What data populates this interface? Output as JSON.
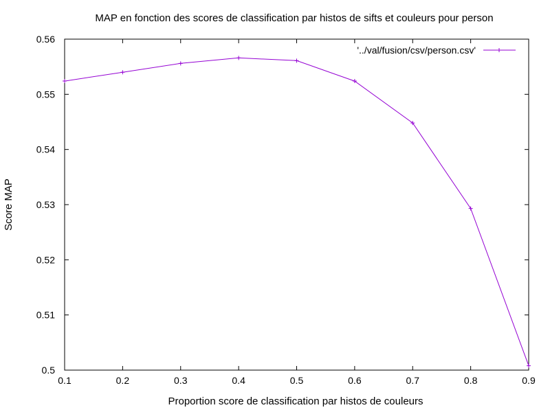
{
  "chart_data": {
    "type": "line",
    "title": "MAP en fonction des scores de classification par histos de sifts et couleurs pour person",
    "xlabel": "Proportion score de classification par histos de couleurs",
    "ylabel": "Score MAP",
    "xlim": [
      0.1,
      0.9
    ],
    "ylim": [
      0.5,
      0.56
    ],
    "x_ticks": [
      "0.1",
      "0.2",
      "0.3",
      "0.4",
      "0.5",
      "0.6",
      "0.7",
      "0.8",
      "0.9"
    ],
    "y_ticks": [
      "0.5",
      "0.51",
      "0.52",
      "0.53",
      "0.54",
      "0.55",
      "0.56"
    ],
    "grid": false,
    "legend_position": "top-right",
    "series": [
      {
        "name": "'../val/fusion/csv/person.csv'",
        "color": "#9400d3",
        "marker": "plus",
        "x": [
          0.1,
          0.2,
          0.3,
          0.4,
          0.5,
          0.6,
          0.7,
          0.8,
          0.9
        ],
        "y": [
          0.5524,
          0.554,
          0.5556,
          0.5566,
          0.5561,
          0.5524,
          0.5448,
          0.5293,
          0.5008
        ]
      }
    ]
  }
}
